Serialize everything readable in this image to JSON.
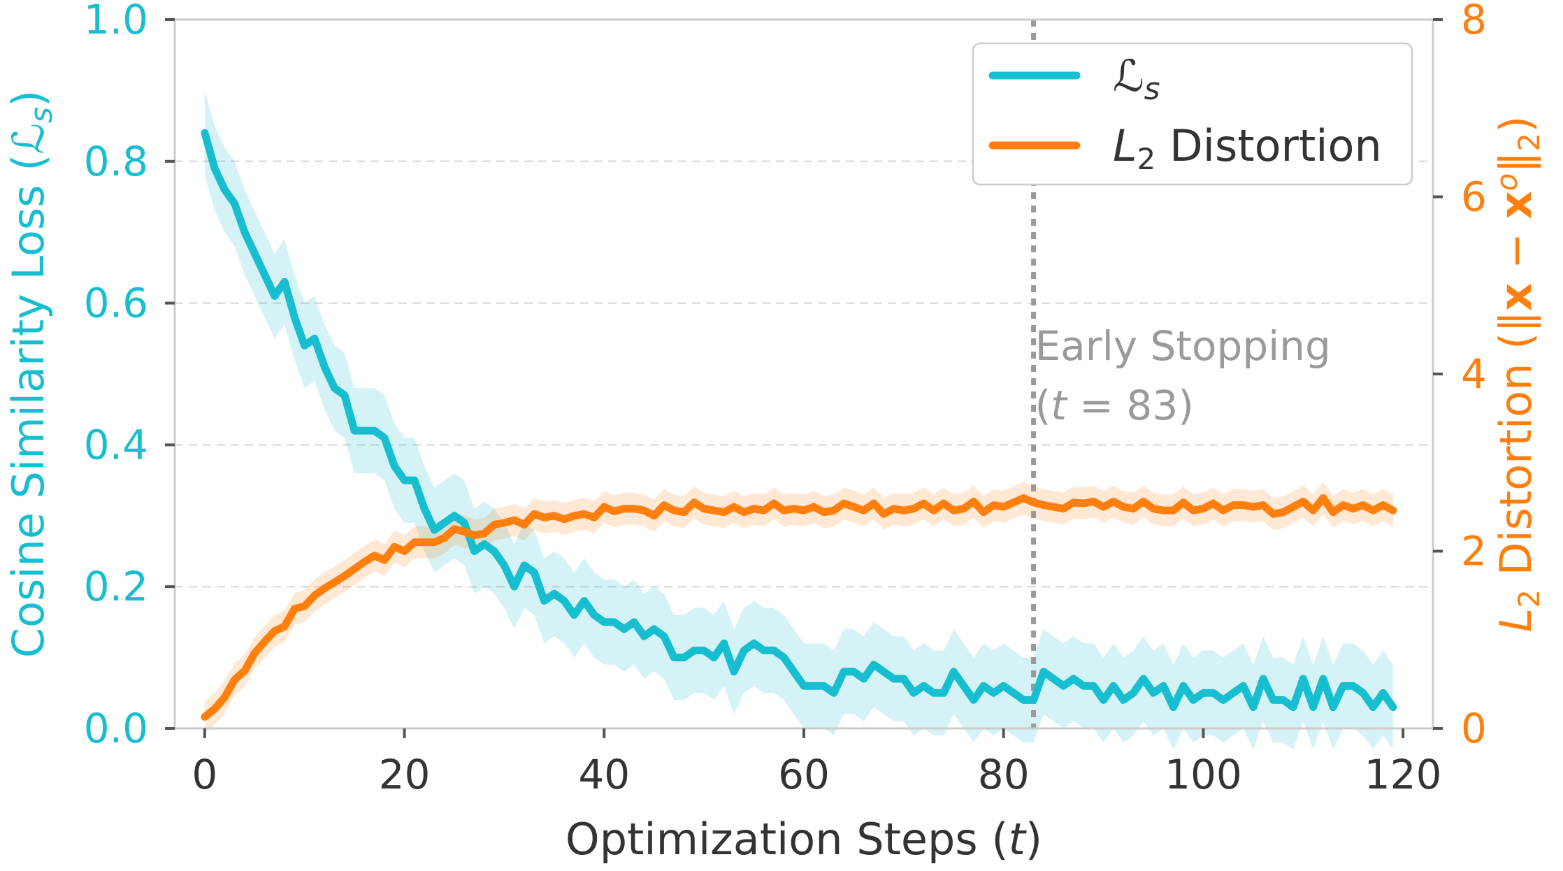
{
  "chart_data": {
    "type": "line",
    "xlabel": "Optimization Steps (t)",
    "ylabel_left": "Cosine Similarity Loss (ℒs)",
    "ylabel_right": "L2 Distortion (‖x − xᵒ‖2)",
    "xlim": [
      -3,
      123
    ],
    "ylim_left": [
      0,
      1
    ],
    "ylim_right": [
      0,
      8
    ],
    "x_ticks": [
      "0",
      "20",
      "40",
      "60",
      "80",
      "100",
      "120"
    ],
    "y_ticks_left": [
      "0.0",
      "0.2",
      "0.4",
      "0.6",
      "0.8",
      "1.0"
    ],
    "y_ticks_right": [
      "0",
      "2",
      "4",
      "6",
      "8"
    ],
    "grid": "horizontal dashed",
    "legend_position": "top-right",
    "colors": {
      "left": "#17becf",
      "right": "#ff7f0e",
      "annotation": "#9a9a9a"
    },
    "annotation": {
      "x": 83,
      "line1": "Early Stopping",
      "line2": "(t = 83)"
    },
    "series": [
      {
        "name": "ℒs",
        "axis": "left",
        "color": "#17becf",
        "points": [
          [
            0,
            0.84
          ],
          [
            1,
            0.79
          ],
          [
            2,
            0.76
          ],
          [
            3,
            0.74
          ],
          [
            4,
            0.7
          ],
          [
            5,
            0.67
          ],
          [
            6,
            0.64
          ],
          [
            7,
            0.61
          ],
          [
            8,
            0.63
          ],
          [
            9,
            0.58
          ],
          [
            10,
            0.54
          ],
          [
            11,
            0.55
          ],
          [
            12,
            0.51
          ],
          [
            13,
            0.48
          ],
          [
            14,
            0.47
          ],
          [
            15,
            0.42
          ],
          [
            16,
            0.42
          ],
          [
            17,
            0.42
          ],
          [
            18,
            0.41
          ],
          [
            19,
            0.37
          ],
          [
            20,
            0.35
          ],
          [
            21,
            0.35
          ],
          [
            22,
            0.31
          ],
          [
            23,
            0.28
          ],
          [
            24,
            0.29
          ],
          [
            25,
            0.3
          ],
          [
            26,
            0.29
          ],
          [
            27,
            0.25
          ],
          [
            28,
            0.26
          ],
          [
            29,
            0.25
          ],
          [
            30,
            0.23
          ],
          [
            31,
            0.2
          ],
          [
            32,
            0.23
          ],
          [
            33,
            0.22
          ],
          [
            34,
            0.18
          ],
          [
            35,
            0.19
          ],
          [
            36,
            0.18
          ],
          [
            37,
            0.16
          ],
          [
            38,
            0.18
          ],
          [
            39,
            0.16
          ],
          [
            40,
            0.15
          ],
          [
            41,
            0.15
          ],
          [
            42,
            0.14
          ],
          [
            43,
            0.15
          ],
          [
            44,
            0.13
          ],
          [
            45,
            0.14
          ],
          [
            46,
            0.13
          ],
          [
            47,
            0.1
          ],
          [
            48,
            0.1
          ],
          [
            49,
            0.11
          ],
          [
            50,
            0.11
          ],
          [
            51,
            0.1
          ],
          [
            52,
            0.12
          ],
          [
            53,
            0.08
          ],
          [
            54,
            0.11
          ],
          [
            55,
            0.12
          ],
          [
            56,
            0.11
          ],
          [
            57,
            0.11
          ],
          [
            58,
            0.1
          ],
          [
            59,
            0.08
          ],
          [
            60,
            0.06
          ],
          [
            61,
            0.06
          ],
          [
            62,
            0.06
          ],
          [
            63,
            0.05
          ],
          [
            64,
            0.08
          ],
          [
            65,
            0.08
          ],
          [
            66,
            0.07
          ],
          [
            67,
            0.09
          ],
          [
            68,
            0.08
          ],
          [
            69,
            0.07
          ],
          [
            70,
            0.07
          ],
          [
            71,
            0.05
          ],
          [
            72,
            0.06
          ],
          [
            73,
            0.05
          ],
          [
            74,
            0.05
          ],
          [
            75,
            0.08
          ],
          [
            76,
            0.06
          ],
          [
            77,
            0.04
          ],
          [
            78,
            0.06
          ],
          [
            79,
            0.05
          ],
          [
            80,
            0.06
          ],
          [
            81,
            0.05
          ],
          [
            82,
            0.04
          ],
          [
            83,
            0.04
          ],
          [
            84,
            0.08
          ],
          [
            85,
            0.07
          ],
          [
            86,
            0.06
          ],
          [
            87,
            0.07
          ],
          [
            88,
            0.06
          ],
          [
            89,
            0.06
          ],
          [
            90,
            0.04
          ],
          [
            91,
            0.06
          ],
          [
            92,
            0.04
          ],
          [
            93,
            0.05
          ],
          [
            94,
            0.07
          ],
          [
            95,
            0.05
          ],
          [
            96,
            0.06
          ],
          [
            97,
            0.03
          ],
          [
            98,
            0.06
          ],
          [
            99,
            0.04
          ],
          [
            100,
            0.05
          ],
          [
            101,
            0.05
          ],
          [
            102,
            0.04
          ],
          [
            103,
            0.05
          ],
          [
            104,
            0.06
          ],
          [
            105,
            0.03
          ],
          [
            106,
            0.07
          ],
          [
            107,
            0.04
          ],
          [
            108,
            0.04
          ],
          [
            109,
            0.03
          ],
          [
            110,
            0.07
          ],
          [
            111,
            0.03
          ],
          [
            112,
            0.07
          ],
          [
            113,
            0.03
          ],
          [
            114,
            0.06
          ],
          [
            115,
            0.06
          ],
          [
            116,
            0.05
          ],
          [
            117,
            0.03
          ],
          [
            118,
            0.05
          ],
          [
            119,
            0.03
          ]
        ]
      },
      {
        "name": "L2 Distortion",
        "axis": "right",
        "color": "#ff7f0e",
        "points": [
          [
            0,
            0.13
          ],
          [
            1,
            0.22
          ],
          [
            2,
            0.35
          ],
          [
            3,
            0.55
          ],
          [
            4,
            0.65
          ],
          [
            5,
            0.85
          ],
          [
            6,
            0.98
          ],
          [
            7,
            1.1
          ],
          [
            8,
            1.15
          ],
          [
            9,
            1.35
          ],
          [
            10,
            1.38
          ],
          [
            11,
            1.5
          ],
          [
            12,
            1.58
          ],
          [
            13,
            1.65
          ],
          [
            14,
            1.72
          ],
          [
            15,
            1.8
          ],
          [
            16,
            1.88
          ],
          [
            17,
            1.95
          ],
          [
            18,
            1.9
          ],
          [
            19,
            2.05
          ],
          [
            20,
            2.0
          ],
          [
            21,
            2.1
          ],
          [
            22,
            2.1
          ],
          [
            23,
            2.1
          ],
          [
            24,
            2.15
          ],
          [
            25,
            2.25
          ],
          [
            26,
            2.22
          ],
          [
            27,
            2.18
          ],
          [
            28,
            2.2
          ],
          [
            29,
            2.3
          ],
          [
            30,
            2.32
          ],
          [
            31,
            2.35
          ],
          [
            32,
            2.3
          ],
          [
            33,
            2.42
          ],
          [
            34,
            2.38
          ],
          [
            35,
            2.4
          ],
          [
            36,
            2.36
          ],
          [
            37,
            2.4
          ],
          [
            38,
            2.42
          ],
          [
            39,
            2.38
          ],
          [
            40,
            2.5
          ],
          [
            41,
            2.45
          ],
          [
            42,
            2.48
          ],
          [
            43,
            2.48
          ],
          [
            44,
            2.46
          ],
          [
            45,
            2.4
          ],
          [
            46,
            2.52
          ],
          [
            47,
            2.46
          ],
          [
            48,
            2.44
          ],
          [
            49,
            2.55
          ],
          [
            50,
            2.48
          ],
          [
            51,
            2.46
          ],
          [
            52,
            2.44
          ],
          [
            53,
            2.5
          ],
          [
            54,
            2.44
          ],
          [
            55,
            2.48
          ],
          [
            56,
            2.46
          ],
          [
            57,
            2.54
          ],
          [
            58,
            2.46
          ],
          [
            59,
            2.48
          ],
          [
            60,
            2.46
          ],
          [
            61,
            2.5
          ],
          [
            62,
            2.44
          ],
          [
            63,
            2.46
          ],
          [
            64,
            2.54
          ],
          [
            65,
            2.5
          ],
          [
            66,
            2.46
          ],
          [
            67,
            2.54
          ],
          [
            68,
            2.42
          ],
          [
            69,
            2.48
          ],
          [
            70,
            2.46
          ],
          [
            71,
            2.48
          ],
          [
            72,
            2.54
          ],
          [
            73,
            2.46
          ],
          [
            74,
            2.54
          ],
          [
            75,
            2.46
          ],
          [
            76,
            2.48
          ],
          [
            77,
            2.56
          ],
          [
            78,
            2.44
          ],
          [
            79,
            2.52
          ],
          [
            80,
            2.5
          ],
          [
            81,
            2.55
          ],
          [
            82,
            2.6
          ],
          [
            83,
            2.55
          ],
          [
            84,
            2.52
          ],
          [
            85,
            2.5
          ],
          [
            86,
            2.48
          ],
          [
            87,
            2.55
          ],
          [
            88,
            2.54
          ],
          [
            89,
            2.56
          ],
          [
            90,
            2.5
          ],
          [
            91,
            2.56
          ],
          [
            92,
            2.5
          ],
          [
            93,
            2.48
          ],
          [
            94,
            2.56
          ],
          [
            95,
            2.48
          ],
          [
            96,
            2.46
          ],
          [
            97,
            2.46
          ],
          [
            98,
            2.55
          ],
          [
            99,
            2.46
          ],
          [
            100,
            2.48
          ],
          [
            101,
            2.54
          ],
          [
            102,
            2.46
          ],
          [
            103,
            2.52
          ],
          [
            104,
            2.52
          ],
          [
            105,
            2.5
          ],
          [
            106,
            2.52
          ],
          [
            107,
            2.42
          ],
          [
            108,
            2.44
          ],
          [
            109,
            2.5
          ],
          [
            110,
            2.56
          ],
          [
            111,
            2.46
          ],
          [
            112,
            2.6
          ],
          [
            113,
            2.44
          ],
          [
            114,
            2.52
          ],
          [
            115,
            2.48
          ],
          [
            116,
            2.52
          ],
          [
            117,
            2.46
          ],
          [
            118,
            2.52
          ],
          [
            119,
            2.46
          ]
        ]
      }
    ]
  }
}
